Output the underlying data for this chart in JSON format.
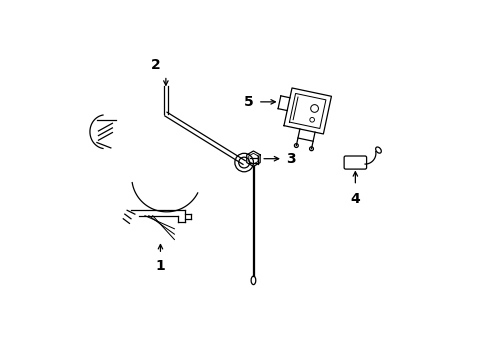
{
  "background_color": "#ffffff",
  "line_color": "#000000",
  "figsize": [
    4.9,
    3.6
  ],
  "dpi": 100,
  "xlim": [
    0,
    4.9
  ],
  "ylim": [
    0,
    3.6
  ]
}
